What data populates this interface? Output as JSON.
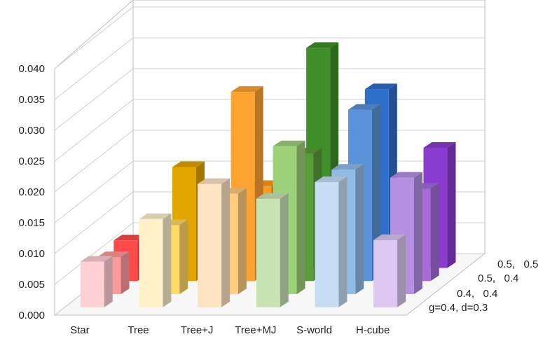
{
  "chart_data": {
    "type": "bar",
    "subtype": "3d-column",
    "categories": [
      "Star",
      "Tree",
      "Tree+J",
      "Tree+MJ",
      "S-world",
      "H-cube"
    ],
    "series": [
      {
        "name": "g=0.4, d=0.3",
        "values": [
          0.0074,
          0.0143,
          0.02,
          0.0176,
          0.0203,
          0.0109
        ]
      },
      {
        "name": "0.4,   0.4",
        "values": [
          0.006,
          0.0112,
          0.0163,
          0.024,
          0.0202,
          0.0189
        ]
      },
      {
        "name": "0.5,   0.4",
        "values": [
          0.0066,
          0.0185,
          0.0307,
          0.0207,
          0.0278,
          0.015
        ]
      },
      {
        "name": "0.5,   0.5",
        "values": [
          0.003,
          0.0081,
          0.0133,
          0.0357,
          0.029,
          0.0195
        ]
      }
    ],
    "yticks": [
      "0.000",
      "0.005",
      "0.010",
      "0.015",
      "0.020",
      "0.025",
      "0.030",
      "0.035",
      "0.040"
    ],
    "ylim": [
      0,
      0.04
    ],
    "grid": true,
    "legend": "none",
    "colors": [
      [
        "#FFD0D4",
        "#FFF1C9",
        "#FFE4C4",
        "#C8E3B4",
        "#C6DDF4",
        "#DCC7F0"
      ],
      [
        "#FF9A9A",
        "#FFD966",
        "#FFCC80",
        "#9DD17A",
        "#92BBE6",
        "#B590E2"
      ],
      [
        "#FF4A4A",
        "#E2A600",
        "#FFA330",
        "#5A9C3A",
        "#5B93DA",
        "#A46BD9"
      ],
      [
        "#FF3030",
        "#DAA000",
        "#FF9A20",
        "#3F8F2A",
        "#2F6FCC",
        "#8A3BD0"
      ]
    ]
  }
}
